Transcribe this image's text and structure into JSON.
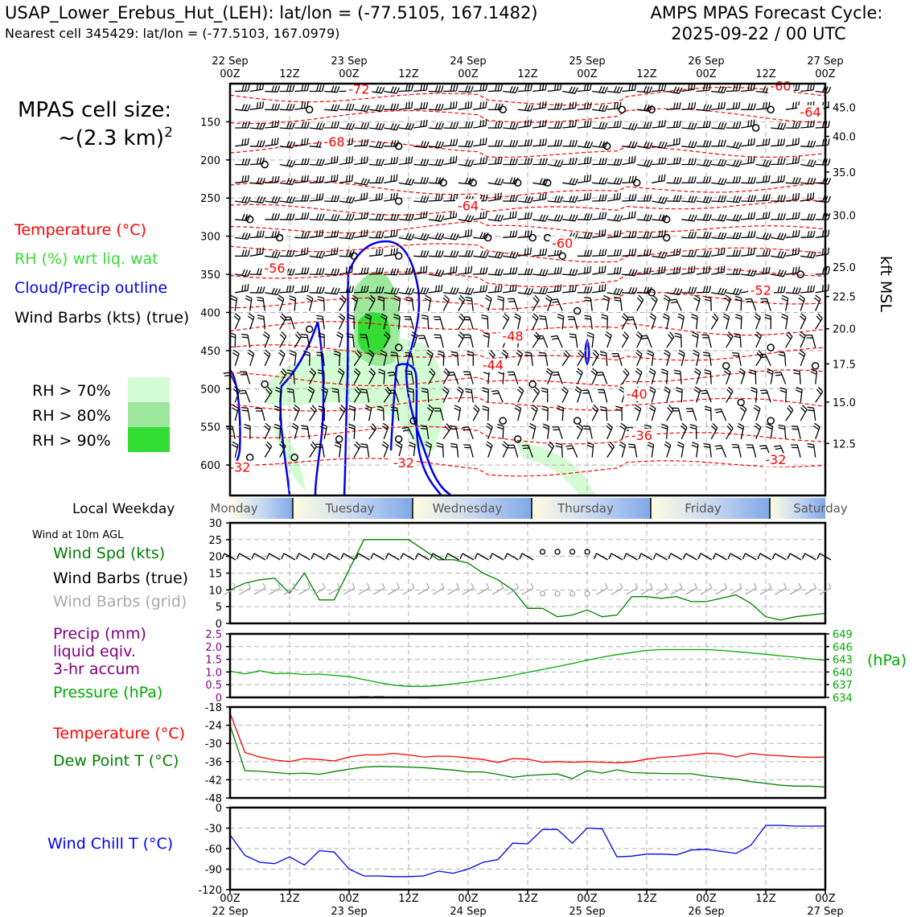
{
  "header": {
    "title_left": "USAP_Lower_Erebus_Hut_(LEH): lat/lon = (-77.5105, 167.1482)",
    "subtitle_left": "Nearest cell 345429: lat/lon = (-77.5103, 167.0979)",
    "title_right_1": "AMPS MPAS Forecast Cycle:",
    "title_right_2": "2025-09-22 / 00 UTC"
  },
  "legend": {
    "cell_size_1": "MPAS cell size:",
    "cell_size_2": "~(2.3 km)",
    "cell_size_sup": "2",
    "temperature": "Temperature (°C)",
    "rh": "RH (%) wrt liq. wat",
    "cloud": "Cloud/Precip outline",
    "barbs": "Wind Barbs (kts) (true)",
    "rh70": "RH > 70%",
    "rh80": "RH > 80%",
    "rh90": "RH > 90%",
    "colors": {
      "rh70": "#d4fcd4",
      "rh80": "#9ee89e",
      "rh90": "#33dd33",
      "temperature": "#ff0000",
      "cloud": "#0000ee"
    }
  },
  "weekday": {
    "label": "Local Weekday",
    "days": [
      "Monday",
      "Tuesday",
      "Wednesday",
      "Thursday",
      "Friday",
      "Saturday"
    ]
  },
  "side_labels": {
    "wind10m": "Wind at 10m AGL",
    "wind_spd": "Wind Spd (kts)",
    "wind_barbs_true": "Wind Barbs (true)",
    "wind_barbs_grid": "Wind Barbs (grid)",
    "precip_1": "Precip (mm)",
    "precip_2": "liquid eqiv.",
    "precip_3": "3-hr accum",
    "pressure": "Pressure (hPa)",
    "hpa_unit": "(hPa)",
    "temp": "Temperature (°C)",
    "dewpoint": "Dew Point T (°C)",
    "windchill": "Wind Chill T (°C)",
    "kft": "kft MSL"
  },
  "time_axis": {
    "hours": [
      0,
      12,
      24,
      36,
      48,
      60,
      72,
      84,
      96,
      108,
      120
    ],
    "top_hour_labels": [
      "00Z",
      "12Z",
      "00Z",
      "12Z",
      "00Z",
      "12Z",
      "00Z",
      "12Z",
      "00Z",
      "12Z",
      "00Z"
    ],
    "date_labels": [
      "22 Sep",
      "",
      "23 Sep",
      "",
      "24 Sep",
      "",
      "25 Sep",
      "",
      "26 Sep",
      "",
      "27 Sep"
    ]
  },
  "chart_data": [
    {
      "type": "line",
      "panel": "vertical cross-section",
      "y_left_ticks": [
        "150",
        "200",
        "250",
        "300",
        "350",
        "400",
        "450",
        "500",
        "550",
        "600"
      ],
      "y_right_ticks": [
        "45.0",
        "40.0",
        "35.0",
        "30.0",
        "25.0",
        "22.5",
        "20.0",
        "17.5",
        "15.0",
        "12.5"
      ],
      "ylabel_right": "kft MSL",
      "temperature_contour_labels": [
        {
          "text": "-72",
          "x": 26,
          "p": 112
        },
        {
          "text": "-68",
          "x": 21,
          "p": 181
        },
        {
          "text": "-64",
          "x": 48,
          "p": 265
        },
        {
          "text": "-60",
          "x": 67,
          "p": 314
        },
        {
          "text": "-56",
          "x": 9,
          "p": 347
        },
        {
          "text": "-52",
          "x": 107,
          "p": 376
        },
        {
          "text": "-48",
          "x": 57,
          "p": 436
        },
        {
          "text": "-44",
          "x": 53,
          "p": 474
        },
        {
          "text": "-40",
          "x": 82,
          "p": 512
        },
        {
          "text": "-36",
          "x": 83,
          "p": 566
        },
        {
          "text": "-32",
          "x": 2,
          "p": 608
        },
        {
          "text": "-32",
          "x": 35,
          "p": 602
        },
        {
          "text": "-32",
          "x": 110,
          "p": 598
        },
        {
          "text": "-60",
          "x": 111,
          "p": 108
        },
        {
          "text": "-64",
          "x": 117,
          "p": 142
        }
      ]
    },
    {
      "type": "line",
      "panel": "10m wind",
      "ylim": [
        0,
        30
      ],
      "y_ticks": [
        "0",
        "5",
        "10",
        "15",
        "20",
        "25",
        "30"
      ],
      "series": [
        {
          "values_key": "wind_spd",
          "color": "#008000",
          "x": [
            0,
            3,
            6,
            9,
            12,
            15,
            18,
            21,
            24,
            27,
            30,
            33,
            36,
            39,
            42,
            45,
            48,
            51,
            54,
            57,
            60,
            63,
            66,
            69,
            72,
            75,
            78,
            81,
            84,
            87,
            90,
            93,
            96,
            99,
            102,
            105,
            108,
            111,
            114,
            117,
            120
          ],
          "values": [
            10,
            12,
            13,
            13.5,
            9,
            15,
            7,
            7,
            16,
            25,
            25,
            25,
            25,
            22,
            19,
            19,
            18,
            15,
            13,
            10,
            4.5,
            4.5,
            2,
            2.5,
            4,
            2,
            2.5,
            8,
            8,
            7.5,
            8,
            6.5,
            6.5,
            7.5,
            8.5,
            6,
            2,
            1,
            2,
            2.5,
            3
          ]
        }
      ]
    },
    {
      "type": "line",
      "panel": "precip and pressure",
      "ylim_left": [
        0,
        2.5
      ],
      "y_left_ticks": [
        "0",
        "0.5",
        "1.0",
        "1.5",
        "2.0",
        "2.5"
      ],
      "ylim_right": [
        634,
        649
      ],
      "y_right_ticks": [
        "634",
        "637",
        "640",
        "643",
        "646",
        "649"
      ],
      "series": [
        {
          "values_key": "pressure",
          "color": "#00aa00",
          "x": [
            0,
            3,
            6,
            9,
            12,
            15,
            18,
            21,
            24,
            27,
            30,
            33,
            36,
            39,
            42,
            45,
            48,
            51,
            54,
            57,
            60,
            63,
            66,
            69,
            72,
            75,
            78,
            81,
            84,
            87,
            90,
            93,
            96,
            99,
            102,
            105,
            108,
            111,
            114,
            117,
            120
          ],
          "values": [
            640.2,
            639.5,
            640.3,
            639.6,
            639.7,
            639.4,
            639.5,
            639.2,
            638.9,
            638.2,
            637.5,
            636.9,
            636.6,
            636.6,
            636.8,
            637.2,
            637.6,
            638.1,
            638.6,
            639.2,
            639.9,
            640.6,
            641.3,
            642.0,
            642.8,
            643.5,
            644.1,
            644.6,
            645.1,
            645.3,
            645.3,
            645.3,
            645.3,
            645.1,
            644.8,
            644.5,
            644.2,
            643.8,
            643.5,
            643.1,
            642.8
          ]
        },
        {
          "values_key": "precip",
          "color": "#800080",
          "x": [
            27,
            30,
            33,
            36,
            39
          ],
          "values": [
            0.05,
            0.05,
            0.03,
            0.03,
            0.02
          ]
        }
      ]
    },
    {
      "type": "line",
      "panel": "temperature and dew point",
      "ylim": [
        -48,
        -18
      ],
      "y_ticks": [
        "-18",
        "-24",
        "-30",
        "-36",
        "-42",
        "-48"
      ],
      "series": [
        {
          "values_key": "temperature",
          "color": "#ff0000",
          "x": [
            0,
            3,
            6,
            9,
            12,
            15,
            18,
            21,
            24,
            27,
            30,
            33,
            36,
            39,
            42,
            45,
            48,
            51,
            54,
            57,
            60,
            63,
            66,
            69,
            72,
            75,
            78,
            81,
            84,
            87,
            90,
            93,
            96,
            99,
            102,
            105,
            108,
            111,
            114,
            117,
            120
          ],
          "values": [
            -20,
            -33,
            -34.5,
            -35.5,
            -36,
            -35,
            -35.3,
            -35.8,
            -34.5,
            -33.8,
            -33.8,
            -33.3,
            -33.8,
            -34.5,
            -34.2,
            -34.3,
            -34.8,
            -35.3,
            -36.3,
            -35,
            -35.2,
            -36.2,
            -36,
            -36.2,
            -36,
            -36.2,
            -36.4,
            -36.1,
            -35.2,
            -34.6,
            -34.3,
            -33.8,
            -33.2,
            -33.5,
            -34.5,
            -33.3,
            -33.8,
            -34.1,
            -34.4,
            -34.6,
            -34.5
          ]
        },
        {
          "values_key": "dewpoint",
          "color": "#008000",
          "x": [
            0,
            3,
            6,
            9,
            12,
            15,
            18,
            21,
            24,
            27,
            30,
            33,
            36,
            39,
            42,
            45,
            48,
            51,
            54,
            57,
            60,
            63,
            66,
            69,
            72,
            75,
            78,
            81,
            84,
            87,
            90,
            93,
            96,
            99,
            102,
            105,
            108,
            111,
            114,
            117,
            120
          ],
          "values": [
            -24,
            -39,
            -39.2,
            -39.6,
            -40,
            -39.8,
            -40.2,
            -39.3,
            -38.5,
            -37.8,
            -37.6,
            -37.7,
            -37.8,
            -38,
            -38.4,
            -38.8,
            -39.4,
            -39.4,
            -40.2,
            -41.2,
            -40.6,
            -40.3,
            -40.1,
            -41.6,
            -39,
            -39.8,
            -38.7,
            -39.6,
            -39.8,
            -39.9,
            -40,
            -40,
            -40.8,
            -41.3,
            -41.8,
            -42.6,
            -43.2,
            -43.8,
            -44.1,
            -44.1,
            -44.4
          ]
        }
      ]
    },
    {
      "type": "line",
      "panel": "wind chill",
      "ylim": [
        -120,
        0
      ],
      "y_ticks": [
        "0",
        "-30",
        "-60",
        "-90",
        "-120"
      ],
      "series": [
        {
          "values_key": "windchill",
          "color": "#0000ee",
          "x": [
            0,
            3,
            6,
            9,
            12,
            15,
            18,
            21,
            24,
            27,
            30,
            33,
            36,
            39,
            42,
            45,
            48,
            51,
            54,
            57,
            60,
            63,
            66,
            69,
            72,
            75,
            78,
            81,
            84,
            87,
            90,
            93,
            96,
            99,
            102,
            105,
            108,
            111,
            114,
            117,
            120
          ],
          "values": [
            -40,
            -70,
            -80,
            -82,
            -72,
            -84,
            -63,
            -65,
            -90,
            -100,
            -100,
            -101,
            -101,
            -100,
            -93,
            -96,
            -90,
            -80,
            -76,
            -52,
            -53,
            -32,
            -32,
            -52,
            -30,
            -31,
            -72,
            -71,
            -68,
            -68,
            -69,
            -62,
            -61,
            -64,
            -67,
            -55,
            -26,
            -26,
            -27,
            -27,
            -27
          ]
        }
      ]
    }
  ]
}
